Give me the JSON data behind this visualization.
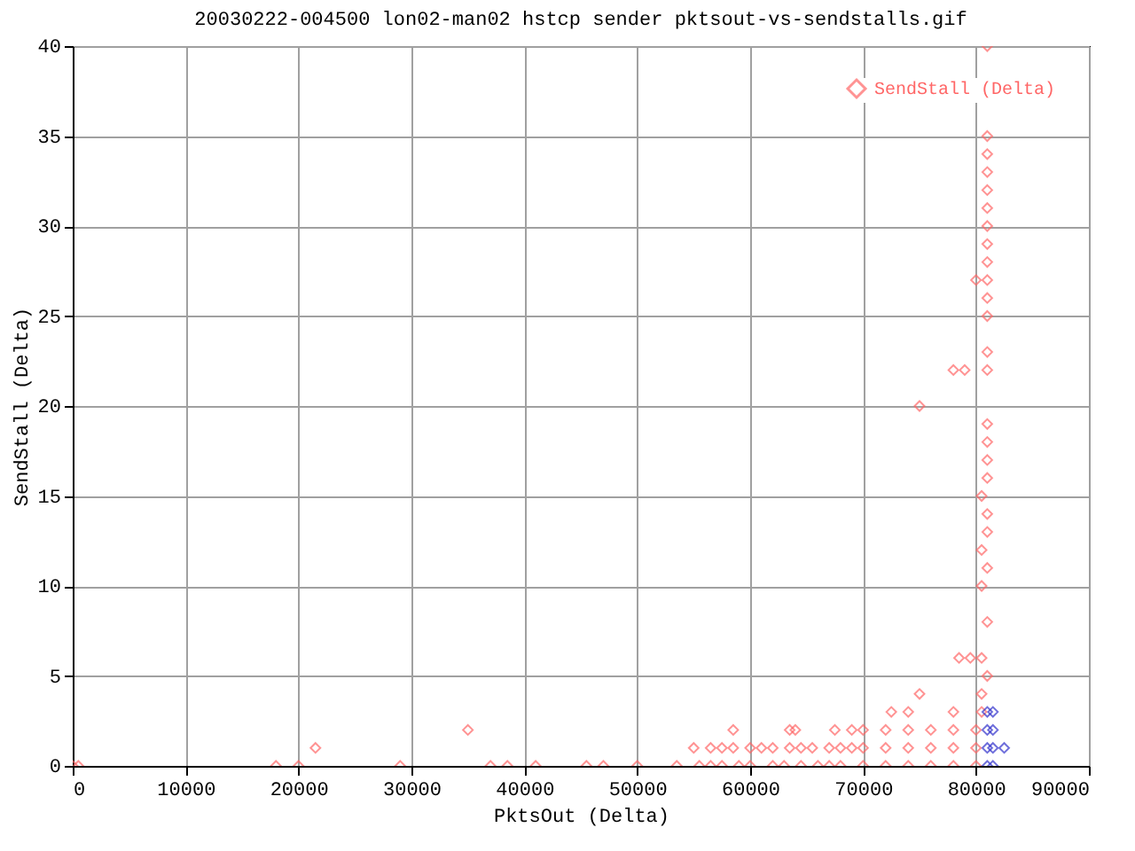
{
  "chart_data": {
    "type": "scatter",
    "title": "20030222-004500 lon02-man02 hstcp sender pktsout-vs-sendstalls.gif",
    "xlabel": "PktsOut (Delta)",
    "ylabel": "SendStall (Delta)",
    "xlim": [
      0,
      90000
    ],
    "xticks": [
      0,
      10000,
      20000,
      30000,
      40000,
      50000,
      60000,
      70000,
      80000,
      90000
    ],
    "ylim": [
      0,
      40
    ],
    "yticks": [
      0,
      5,
      10,
      15,
      20,
      25,
      30,
      35,
      40
    ],
    "grid": true,
    "legend": "top right",
    "marker": "diamond",
    "series": [
      {
        "name": "SendStall (Delta)",
        "color": "#ff6666",
        "x": [
          0,
          500,
          18000,
          20000,
          29000,
          37000,
          38500,
          41000,
          45500,
          47000,
          50000,
          53500,
          55500,
          56500,
          57500,
          59000,
          60000,
          62000,
          63000,
          64500,
          66000,
          67000,
          68000,
          70000,
          72000,
          74000,
          76000,
          78000,
          80000,
          21500,
          55000,
          56500,
          57500,
          58500,
          60000,
          61000,
          62000,
          63500,
          64500,
          65500,
          67000,
          68000,
          69000,
          70000,
          72000,
          74000,
          76000,
          78000,
          80000,
          35000,
          58500,
          63500,
          64000,
          67500,
          69000,
          70000,
          72000,
          74000,
          76000,
          78000,
          80000,
          72500,
          74000,
          78000,
          80500,
          75000,
          80500,
          81000,
          78500,
          79500,
          80500,
          81000,
          80500,
          81000,
          80500,
          81000,
          81000,
          80500,
          81000,
          81000,
          81000,
          81000,
          75000,
          78000,
          79000,
          81000,
          81000,
          81000,
          81000,
          80000,
          81000,
          81000,
          81000,
          81000,
          81000,
          81000,
          81000,
          81000,
          81000,
          81000
        ],
        "values": [
          0,
          0,
          0,
          0,
          0,
          0,
          0,
          0,
          0,
          0,
          0,
          0,
          0,
          0,
          0,
          0,
          0,
          0,
          0,
          0,
          0,
          0,
          0,
          0,
          0,
          0,
          0,
          0,
          0,
          1,
          1,
          1,
          1,
          1,
          1,
          1,
          1,
          1,
          1,
          1,
          1,
          1,
          1,
          1,
          1,
          1,
          1,
          1,
          1,
          2,
          2,
          2,
          2,
          2,
          2,
          2,
          2,
          2,
          2,
          2,
          2,
          3,
          3,
          3,
          3,
          4,
          4,
          5,
          6,
          6,
          6,
          8,
          10,
          11,
          12,
          13,
          14,
          15,
          16,
          17,
          18,
          19,
          20,
          22,
          22,
          22,
          23,
          25,
          26,
          27,
          27,
          28,
          29,
          30,
          31,
          32,
          33,
          34,
          35,
          40
        ]
      },
      {
        "color": "#3333cc",
        "x": [
          81000,
          81500,
          81000,
          81500,
          82500,
          81000,
          81500,
          81000,
          81500
        ],
        "values": [
          0,
          0,
          1,
          1,
          1,
          2,
          2,
          3,
          3
        ]
      }
    ]
  }
}
